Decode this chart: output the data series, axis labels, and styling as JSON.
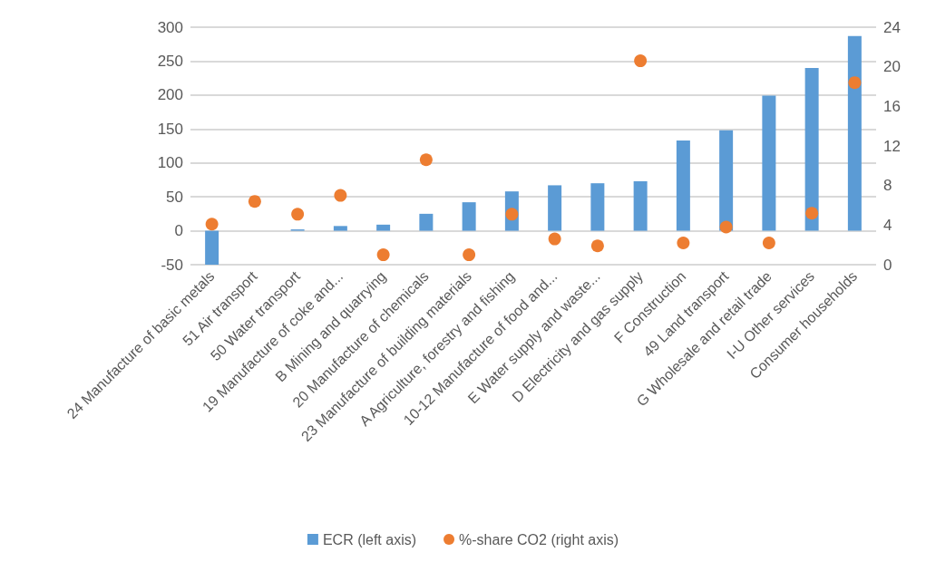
{
  "chart_data": {
    "type": "bar",
    "categories": [
      "24 Manufacture of basic metals",
      "51 Air transport",
      "50 Water transport",
      "19 Manufacture of coke and...",
      "B Mining and quarrying",
      "20 Manufacture of chemicals",
      "23 Manufacture of building materials",
      "A Agriculture, forestry and fishing",
      "10-12 Manufacture of food and...",
      "E Water supply and waste...",
      "D Electricity and gas supply",
      "F Construction",
      "49 Land transport",
      "G Wholesale and retail trade",
      "I-U Other services",
      "Consumer households"
    ],
    "series": [
      {
        "name": "ECR (left axis)",
        "color": "#5b9bd5",
        "values": [
          -50,
          0,
          2,
          7,
          9,
          25,
          42,
          58,
          67,
          70,
          73,
          133,
          148,
          199,
          240,
          287
        ]
      },
      {
        "name": "%-share CO2 (right axis)",
        "type": "scatter",
        "axis": "y2",
        "color": "#ed7d31",
        "marker": "circle",
        "values": [
          4.1,
          6.4,
          5.1,
          7.0,
          1.0,
          10.6,
          1.0,
          5.1,
          2.6,
          1.9,
          20.6,
          2.2,
          3.8,
          2.2,
          5.2,
          18.4
        ]
      }
    ],
    "ylim": [
      -50,
      300
    ],
    "yticks": [
      -50,
      0,
      50,
      100,
      150,
      200,
      250,
      300
    ],
    "y2lim": [
      0,
      24
    ],
    "y2ticks": [
      0,
      4,
      8,
      12,
      16,
      20,
      24
    ],
    "grid": "y",
    "legend": "bottom"
  }
}
